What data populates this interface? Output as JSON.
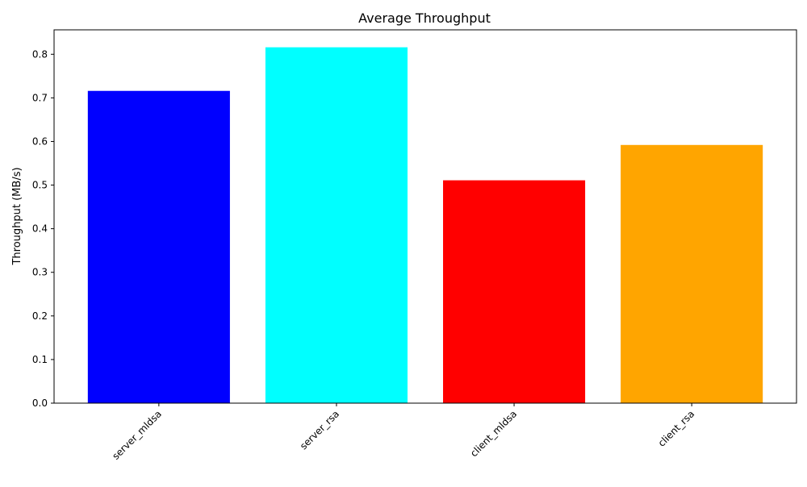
{
  "chart_data": {
    "type": "bar",
    "title": "Average Throughput",
    "xlabel": "",
    "ylabel": "Throughput (MB/s)",
    "categories": [
      "server_mldsa",
      "server_rsa",
      "client_mldsa",
      "client_rsa"
    ],
    "values": [
      0.716,
      0.816,
      0.511,
      0.592
    ],
    "colors": [
      "#0000ff",
      "#00ffff",
      "#ff0000",
      "#ffa500"
    ],
    "ylim": [
      0,
      0.856
    ],
    "yticks": [
      0.0,
      0.1,
      0.2,
      0.3,
      0.4,
      0.5,
      0.6,
      0.7,
      0.8
    ],
    "ytick_labels": [
      "0.0",
      "0.1",
      "0.2",
      "0.3",
      "0.4",
      "0.5",
      "0.6",
      "0.7",
      "0.8"
    ],
    "grid": false,
    "xtick_rotation_deg": 45
  }
}
